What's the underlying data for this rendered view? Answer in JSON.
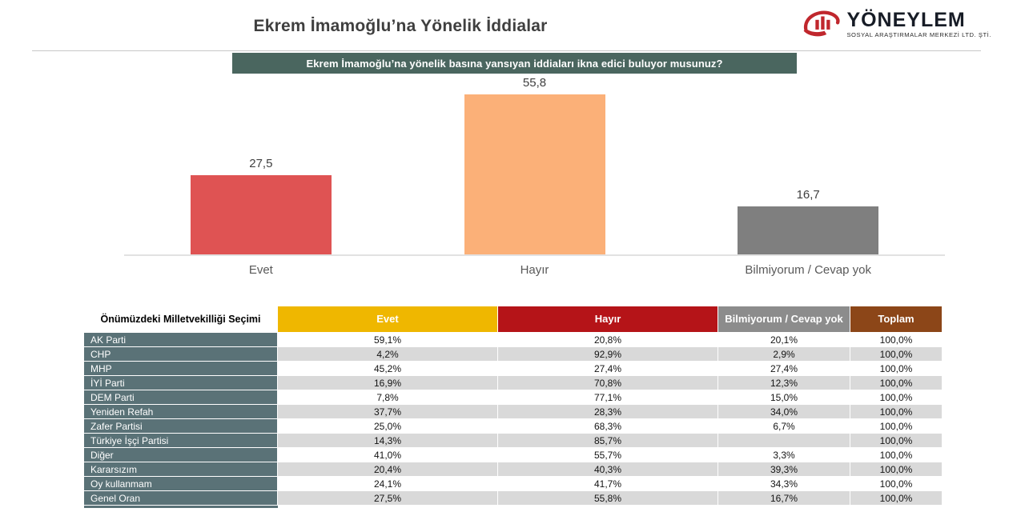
{
  "header": {
    "title": "Ekrem İmamoğlu’na Yönelik İddialar",
    "logo": {
      "brand": "YÖNEYLEM",
      "tagline": "SOSYAL ARAŞTIRMALAR MERKEZİ LTD. ŞTİ.",
      "icon_color": "#C0272D"
    },
    "question": "Ekrem İmamoğlu’na yönelik basına yansıyan iddiaları ikna edici buluyor musunuz?"
  },
  "chart_data": {
    "type": "bar",
    "title": "Ekrem İmamoğlu’na yönelik basına yansıyan iddiaları ikna edici buluyor musunuz?",
    "categories": [
      "Evet",
      "Hayır",
      "Bilmiyorum / Cevap yok"
    ],
    "values": [
      27.5,
      55.8,
      16.7
    ],
    "value_labels": [
      "27,5",
      "55,8",
      "16,7"
    ],
    "bar_colors": [
      "#DF5353",
      "#FBB078",
      "#7F7F7F"
    ],
    "xlabel": "",
    "ylabel": "",
    "ylim": [
      0,
      62
    ],
    "grid": false,
    "legend": false,
    "data_labels": true
  },
  "table": {
    "row_header_title": "Önümüzdeki Milletvekilliği Seçimi",
    "columns": [
      {
        "label": "Evet",
        "color": "#EFB700"
      },
      {
        "label": "Hayır",
        "color": "#B51418"
      },
      {
        "label": "Bilmiyorum / Cevap yok",
        "color": "#8C8C8C"
      },
      {
        "label": "Toplam",
        "color": "#8C4618"
      }
    ],
    "rows": [
      {
        "label": "AK Parti",
        "values": [
          "59,1%",
          "20,8%",
          "20,1%",
          "100,0%"
        ]
      },
      {
        "label": "CHP",
        "values": [
          "4,2%",
          "92,9%",
          "2,9%",
          "100,0%"
        ]
      },
      {
        "label": "MHP",
        "values": [
          "45,2%",
          "27,4%",
          "27,4%",
          "100,0%"
        ]
      },
      {
        "label": "İYİ Parti",
        "values": [
          "16,9%",
          "70,8%",
          "12,3%",
          "100,0%"
        ]
      },
      {
        "label": "DEM Parti",
        "values": [
          "7,8%",
          "77,1%",
          "15,0%",
          "100,0%"
        ]
      },
      {
        "label": "Yeniden Refah",
        "values": [
          "37,7%",
          "28,3%",
          "34,0%",
          "100,0%"
        ]
      },
      {
        "label": "Zafer Partisi",
        "values": [
          "25,0%",
          "68,3%",
          "6,7%",
          "100,0%"
        ]
      },
      {
        "label": "Türkiye İşçi Partisi",
        "values": [
          "14,3%",
          "85,7%",
          "",
          "100,0%"
        ]
      },
      {
        "label": "Diğer",
        "values": [
          "41,0%",
          "55,7%",
          "3,3%",
          "100,0%"
        ]
      },
      {
        "label": "Kararsızım",
        "values": [
          "20,4%",
          "40,3%",
          "39,3%",
          "100,0%"
        ]
      },
      {
        "label": "Oy kullanmam",
        "values": [
          "24,1%",
          "41,7%",
          "34,3%",
          "100,0%"
        ]
      },
      {
        "label": "Genel Oran",
        "values": [
          "27,5%",
          "55,8%",
          "16,7%",
          "100,0%"
        ]
      }
    ]
  },
  "colors": {
    "question_box": "#4A665F",
    "row_label_bg": "#5A7277",
    "row_shade": "#D9D9D9",
    "axis_line": "#E2E2E2"
  }
}
